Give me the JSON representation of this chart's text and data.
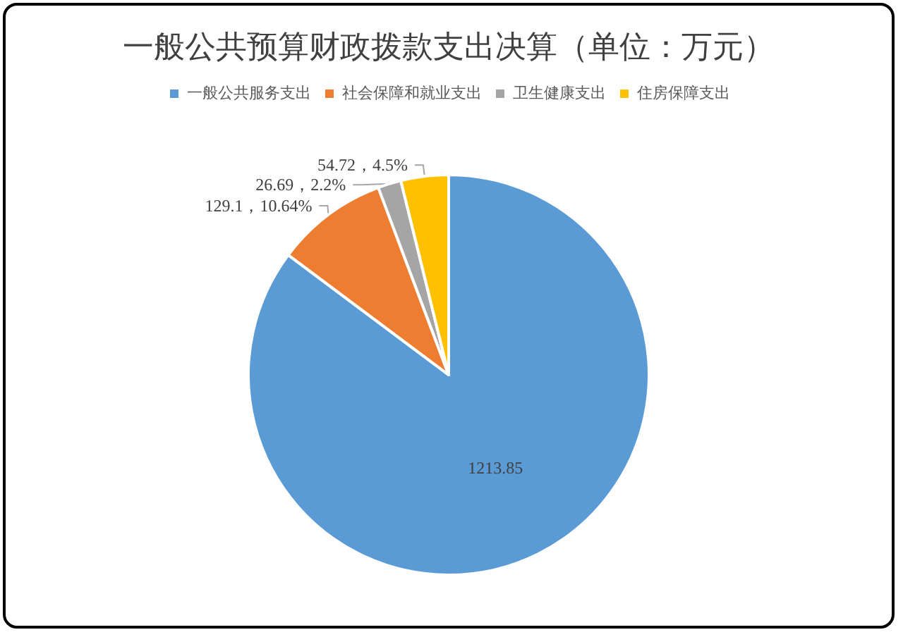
{
  "chart_data": {
    "type": "pie",
    "title": "一般公共预算财政拨款支出决算（单位：万元）",
    "categories": [
      "一般公共服务支出",
      "社会保障和就业支出",
      "卫生健康支出",
      "住房保障支出"
    ],
    "values": [
      1213.85,
      129.1,
      26.69,
      54.72
    ],
    "colors": [
      "#5b9bd5",
      "#ed7d31",
      "#a5a5a5",
      "#ffc000"
    ],
    "value_labels": [
      "1213.85",
      "129.1，10.64%",
      "26.69，2.2%",
      "54.72，4.5%"
    ],
    "legend": "top"
  }
}
